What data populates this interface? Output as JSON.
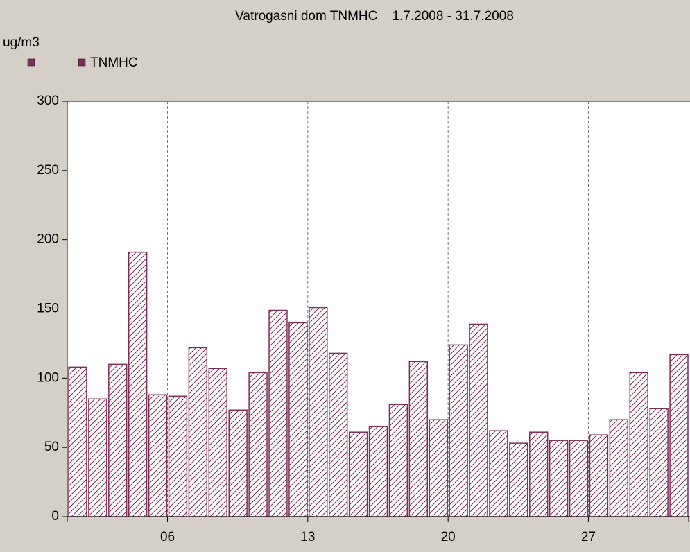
{
  "chart_data": {
    "type": "bar",
    "title": "Vatrogasni dom TNMHC    1.7.2008 - 31.7.2008",
    "ylabel": "ug/m3",
    "categories": [
      null,
      null,
      null,
      null,
      null,
      "06",
      null,
      null,
      null,
      null,
      null,
      null,
      "13",
      null,
      null,
      null,
      null,
      null,
      null,
      "20",
      null,
      null,
      null,
      null,
      null,
      null,
      "27",
      null,
      null,
      null,
      null
    ],
    "series": [
      {
        "name": "TNMHC",
        "color": "#7d2f5a",
        "values": [
          108,
          85,
          110,
          191,
          88,
          87,
          122,
          107,
          77,
          104,
          149,
          140,
          151,
          118,
          61,
          65,
          81,
          112,
          70,
          124,
          139,
          62,
          53,
          61,
          55,
          55,
          59,
          70,
          104,
          78,
          117
        ]
      }
    ],
    "ylim": [
      0,
      300
    ],
    "yticks": [
      0,
      50,
      100,
      150,
      200,
      250,
      300
    ],
    "grid": true
  }
}
